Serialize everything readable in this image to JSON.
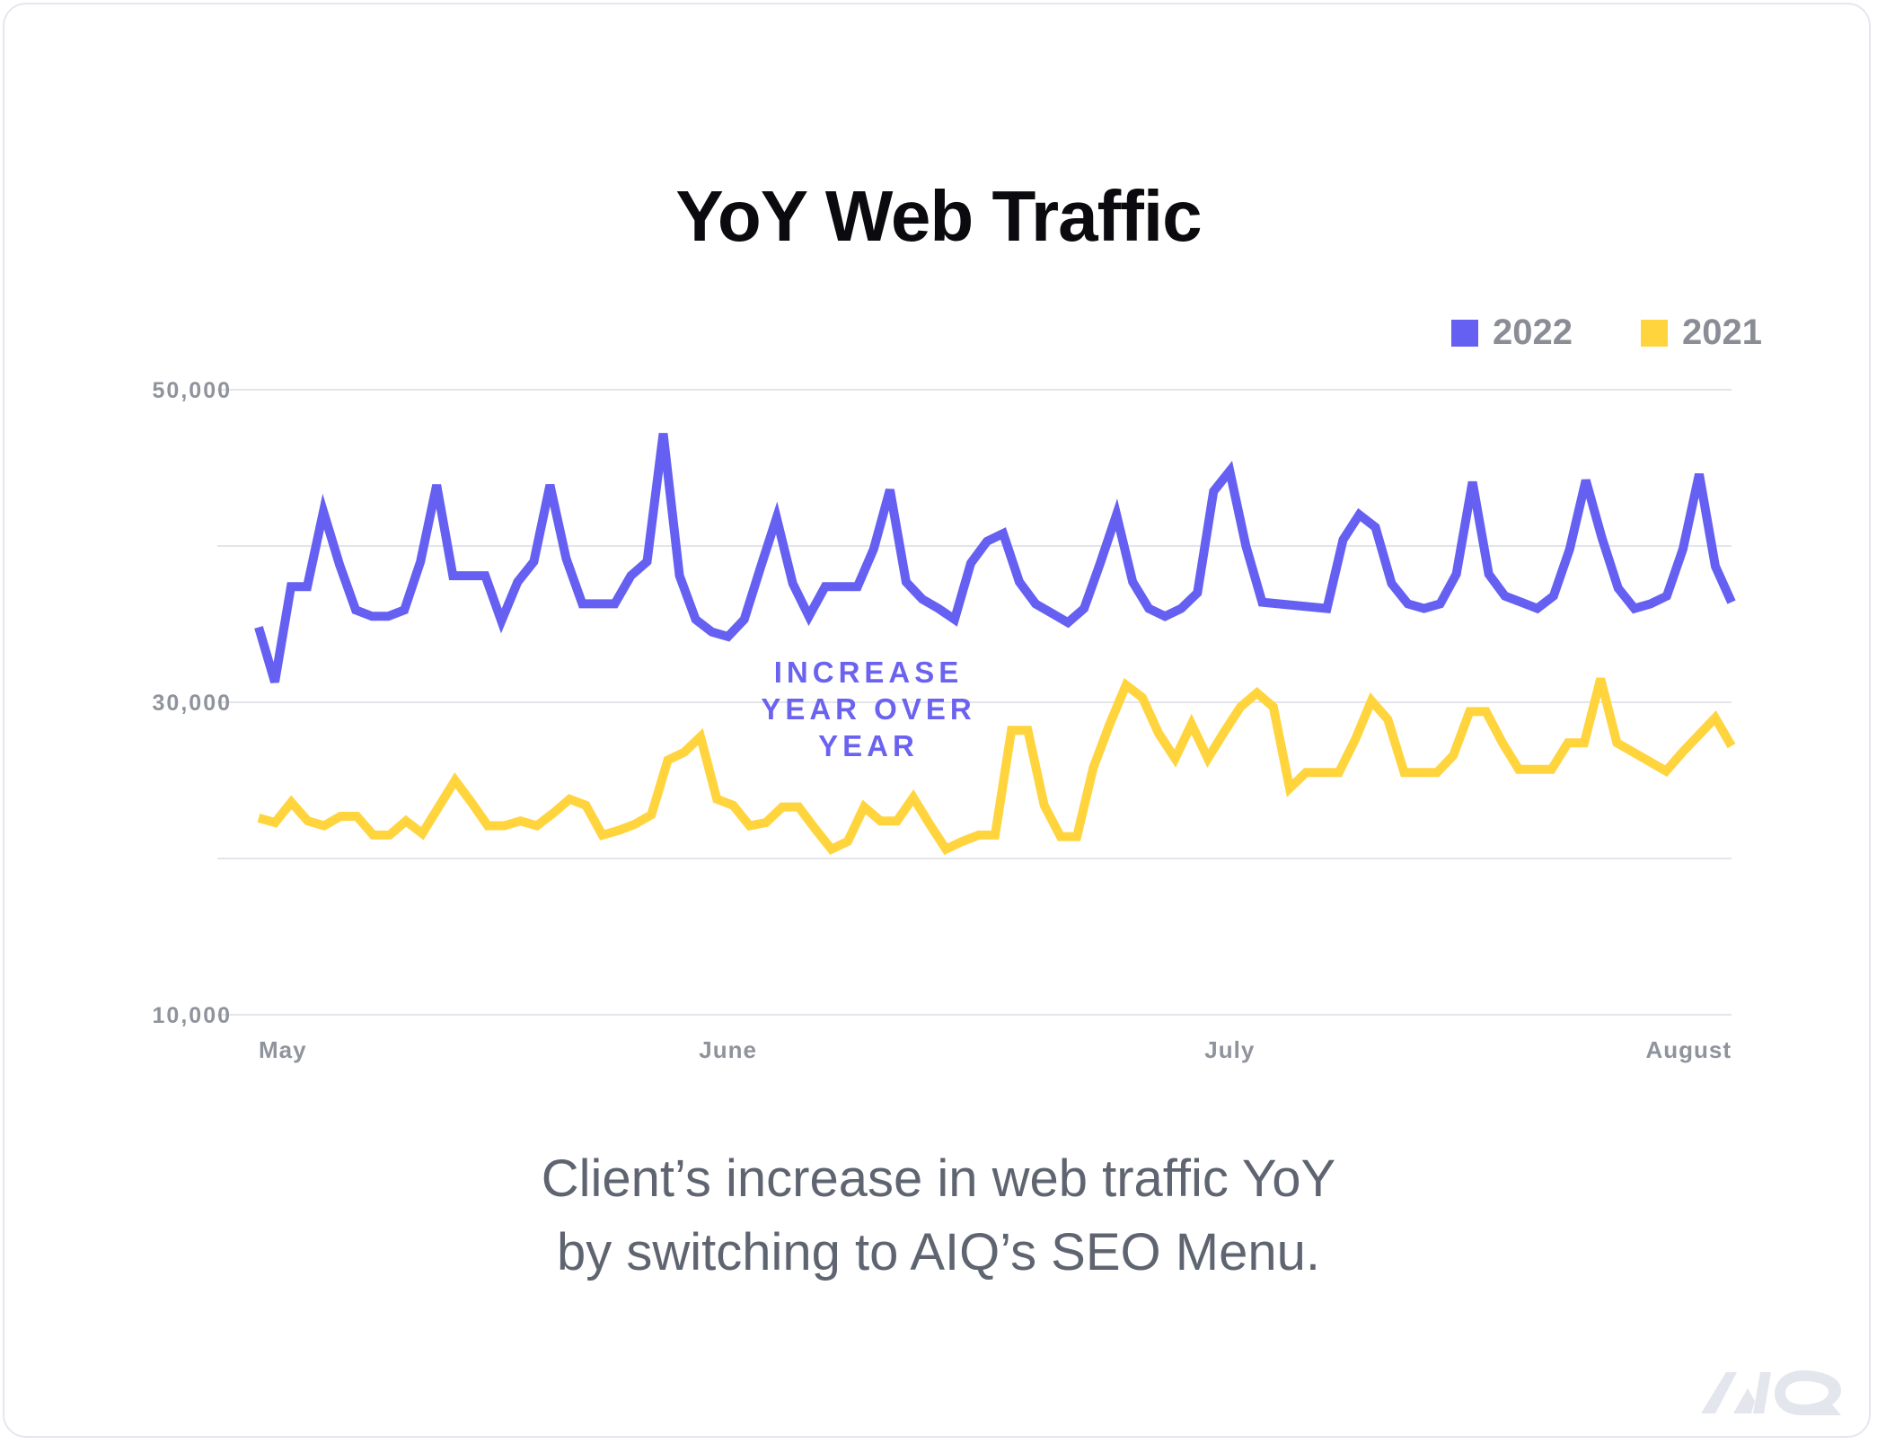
{
  "chart_data": {
    "type": "line",
    "title": "YoY Web Traffic",
    "xlabel": "",
    "ylabel": "",
    "ylim": [
      10000,
      50000
    ],
    "yticks": [
      {
        "value": 50000,
        "label": "50,000"
      },
      {
        "value": 30000,
        "label": "30,000"
      },
      {
        "value": 10000,
        "label": "10,000"
      }
    ],
    "gridlines": [
      50000,
      40000,
      30000,
      20000,
      10000
    ],
    "xlim": [
      0,
      91
    ],
    "xticks": [
      {
        "value": 0,
        "label": "May"
      },
      {
        "value": 29,
        "label": "June"
      },
      {
        "value": 60,
        "label": "July"
      },
      {
        "value": 91,
        "label": "August"
      }
    ],
    "legend_position": "top-right",
    "series": [
      {
        "name": "2022",
        "color": "#6660f2",
        "values": [
          34800,
          31300,
          37400,
          37400,
          42200,
          38800,
          35900,
          35500,
          35500,
          35900,
          39000,
          43900,
          38100,
          38100,
          38100,
          35200,
          37700,
          39000,
          43900,
          39200,
          36300,
          36300,
          36300,
          38100,
          39000,
          47200,
          38100,
          35300,
          34500,
          34200,
          35300,
          38600,
          41800,
          37600,
          35500,
          37400,
          37400,
          37400,
          39800,
          43600,
          37700,
          36600,
          36000,
          35300,
          38900,
          40300,
          40800,
          37700,
          36300,
          35700,
          35100,
          36000,
          38900,
          42000,
          37700,
          36000,
          35500,
          36000,
          37000,
          43500,
          44800,
          40000,
          36400,
          36300,
          36200,
          36100,
          36000,
          40400,
          42000,
          41200,
          37600,
          36300,
          36000,
          36300,
          38200,
          44100,
          38200,
          36800,
          36400,
          36000,
          36800,
          39800,
          44200,
          40500,
          37300,
          36000,
          36300,
          36800,
          39800,
          44600,
          38700,
          36400
        ],
        "color_swatch": "#6660f2"
      },
      {
        "name": "2021",
        "color": "#ffd43d",
        "values": [
          22600,
          22300,
          23600,
          22400,
          22100,
          22700,
          22700,
          21500,
          21500,
          22400,
          21600,
          23300,
          25000,
          23600,
          22100,
          22100,
          22400,
          22100,
          22900,
          23800,
          23400,
          21500,
          21800,
          22200,
          22800,
          26300,
          26800,
          27800,
          23800,
          23400,
          22100,
          22300,
          23300,
          23300,
          21900,
          20600,
          21100,
          23300,
          22400,
          22400,
          23900,
          22200,
          20600,
          21100,
          21500,
          21500,
          28200,
          28200,
          23400,
          21400,
          21400,
          25800,
          28600,
          31100,
          30300,
          28000,
          26400,
          28600,
          26400,
          28100,
          29700,
          30600,
          29700,
          24500,
          25500,
          25500,
          25500,
          27600,
          30100,
          28900,
          25500,
          25500,
          25500,
          26600,
          29400,
          29400,
          27400,
          25700,
          25700,
          25700,
          27400,
          27400,
          31500,
          27400,
          26800,
          26200,
          25600,
          26800,
          27900,
          29000,
          27200
        ]
      }
    ],
    "annotation": {
      "lines": [
        "INCREASE",
        "YEAR OVER",
        "YEAR"
      ],
      "color": "#6b63f0"
    }
  },
  "legend": {
    "items": [
      {
        "label": "2022",
        "color": "#6660f2"
      },
      {
        "label": "2021",
        "color": "#ffd43d"
      }
    ]
  },
  "caption": {
    "line1": "Client’s increase in web traffic YoY",
    "line2": "by switching to AIQ’s SEO Menu."
  },
  "logo": {
    "text": "AIQ",
    "icon": "aiq-logo-icon"
  }
}
